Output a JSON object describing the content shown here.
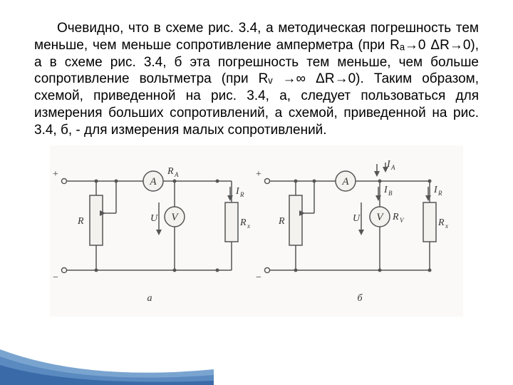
{
  "paragraph": {
    "text": "Очевидно, что в схеме рис. 3.4, а методическая погрешность тем меньше, чем меньше сопротивление амперметра (при Rₐ→0 ΔR→0), а в схеме рис. 3.4, б эта погрешность тем меньше, чем больше сопротивление вольтметра (при Rᵥ →∞ ΔR→0). Таким образом, схемой, приведенной на рис. 3.4, а, следует пользоваться для измерения больших сопротивлений, а схемой, приведенной на рис. 3.4, б, - для измерения малых сопротивлений."
  },
  "diagram": {
    "type": "circuit-schematic",
    "stroke_color": "#555555",
    "fill_color": "#f4f2ef",
    "text_color": "#333333",
    "font_size": 14,
    "circuit_a": {
      "label": "а",
      "terminals": [
        "+",
        "−"
      ],
      "components": {
        "R": "R",
        "ammeter": "A",
        "ammeter_label": "R_A",
        "voltmeter": "V",
        "voltage_label": "U",
        "load": "R_x",
        "current_label": "I_R"
      }
    },
    "circuit_b": {
      "label": "б",
      "terminals": [
        "+",
        "−"
      ],
      "components": {
        "R": "R",
        "ammeter": "A",
        "ammeter_current": "I_A",
        "voltmeter": "V",
        "voltmeter_label": "R_V",
        "voltmeter_current": "I_B",
        "voltage_label": "U",
        "load": "R_x",
        "current_label": "I_R"
      }
    }
  },
  "swoosh_colors": {
    "c1": "#3a6aa8",
    "c2": "#5a8ac0",
    "c3": "#7aa4d0"
  }
}
